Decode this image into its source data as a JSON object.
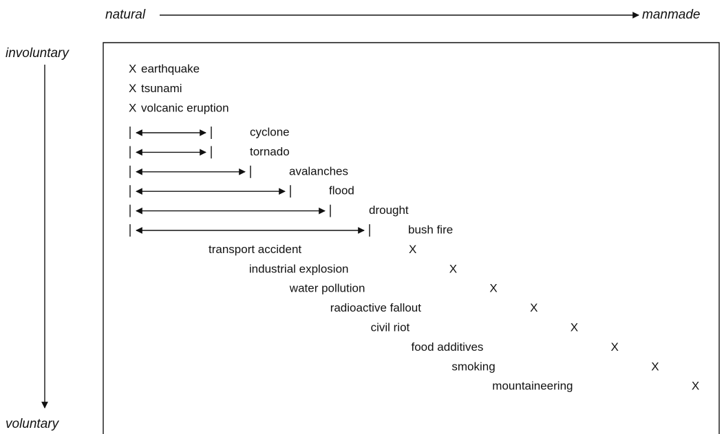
{
  "axes": {
    "x_start": "natural",
    "x_end": "manmade",
    "y_start": "involuntary",
    "y_end": "voluntary"
  },
  "marker": "X",
  "top_points": [
    "earthquake",
    "tsunami",
    "volcanic eruption"
  ],
  "ranges": [
    "cyclone",
    "tornado",
    "avalanches",
    "flood",
    "drought",
    "bush fire"
  ],
  "bottom_points": [
    "transport accident",
    "industrial explosion",
    "water pollution",
    "radioactive fallout",
    "civil riot",
    "food additives",
    "smoking",
    "mountaineering"
  ]
}
